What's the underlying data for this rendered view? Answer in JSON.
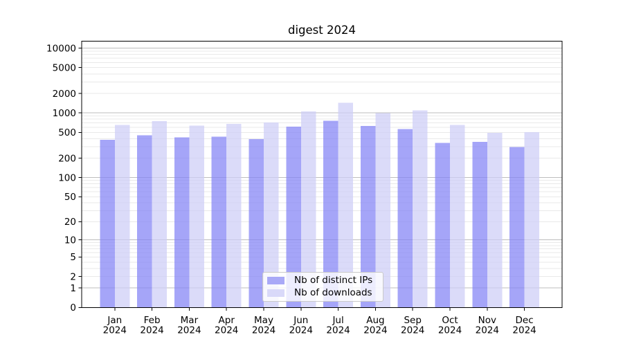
{
  "chart_data": {
    "type": "bar",
    "title": "digest 2024",
    "categories": [
      "Jan",
      "Feb",
      "Mar",
      "Apr",
      "May",
      "Jun",
      "Jul",
      "Aug",
      "Sep",
      "Oct",
      "Nov",
      "Dec"
    ],
    "category_year_label": "2024",
    "series": [
      {
        "name": "Nb of distinct IPs",
        "color": "rgba(130,130,245,0.72)",
        "legend_color": "#a9a9f7",
        "values": [
          385,
          450,
          420,
          430,
          395,
          610,
          760,
          630,
          565,
          345,
          355,
          295
        ]
      },
      {
        "name": "Nb of downloads",
        "color": "rgba(205,205,247,0.72)",
        "legend_color": "#d9d9f9",
        "values": [
          650,
          745,
          640,
          675,
          715,
          1060,
          1430,
          990,
          1100,
          650,
          490,
          505
        ]
      }
    ],
    "yscale": "log1p",
    "y_ticks": [
      0,
      1,
      2,
      5,
      10,
      20,
      50,
      100,
      200,
      500,
      1000,
      2000,
      5000,
      10000
    ],
    "ylim": [
      0,
      12700
    ],
    "xlabel": "",
    "ylabel": "",
    "grid": {
      "on": true,
      "major_values": [
        1,
        10,
        100,
        1000,
        10000
      ],
      "major_color": "#bdbdbd",
      "minor_color": "#e9e9e9"
    },
    "legend_position": "lower center",
    "axis_color": "#000000",
    "background_color": "#ffffff"
  }
}
